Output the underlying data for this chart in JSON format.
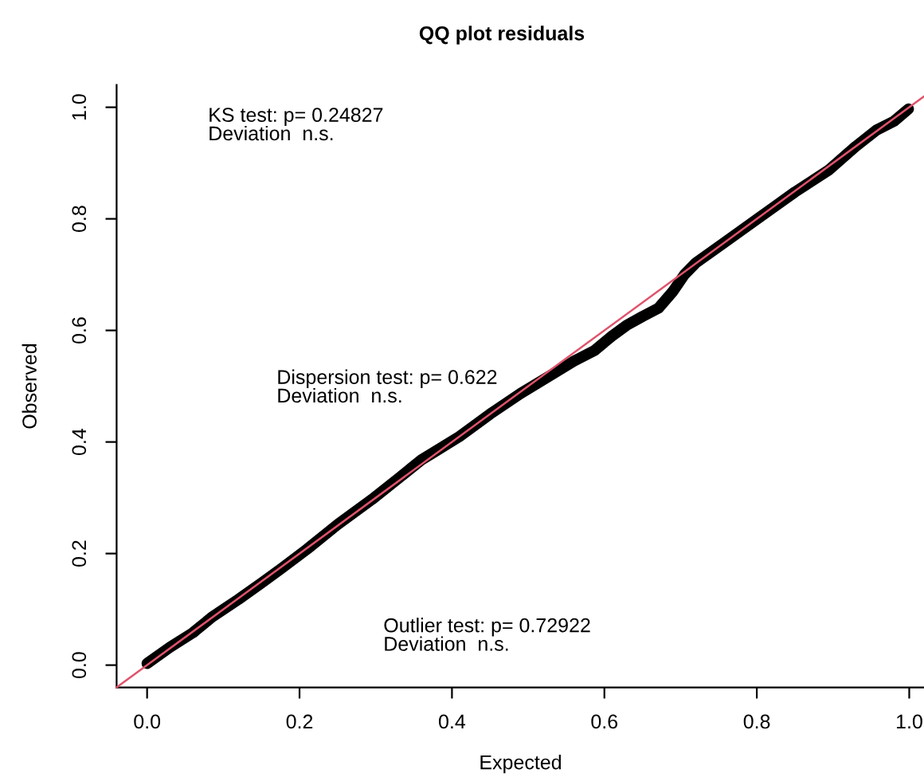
{
  "chart_data": {
    "type": "line",
    "title": "QQ plot residuals",
    "xlabel": "Expected",
    "ylabel": "Observed",
    "xlim": [
      -0.04,
      1.02
    ],
    "ylim": [
      -0.04,
      1.04
    ],
    "xticks": [
      {
        "value": 0,
        "label": "0.0"
      },
      0.2,
      0.4,
      0.6,
      0.8,
      {
        "value": 1,
        "label": "1.0"
      }
    ],
    "yticks": [
      {
        "value": 0,
        "label": "0.0"
      },
      0.2,
      0.4,
      0.6,
      0.8,
      {
        "value": 1,
        "label": "1.0"
      }
    ],
    "grid": false,
    "marker": "none",
    "line_style": "solid",
    "series": [
      {
        "color": "#000000",
        "x": [
          0,
          0.03,
          0.06,
          0.086,
          0.12,
          0.15,
          0.176,
          0.21,
          0.25,
          0.295,
          0.33,
          0.36,
          0.378,
          0.41,
          0.45,
          0.49,
          0.53,
          0.56,
          0.587,
          0.61,
          0.629,
          0.65,
          0.671,
          0.69,
          0.705,
          0.72,
          0.76,
          0.803,
          0.85,
          0.894,
          0.93,
          0.957,
          0.98,
          0.999
        ],
        "values": [
          0.003,
          0.032,
          0.058,
          0.087,
          0.118,
          0.147,
          0.173,
          0.208,
          0.252,
          0.297,
          0.335,
          0.368,
          0.383,
          0.41,
          0.45,
          0.487,
          0.52,
          0.545,
          0.564,
          0.59,
          0.609,
          0.625,
          0.64,
          0.67,
          0.7,
          0.721,
          0.76,
          0.802,
          0.848,
          0.887,
          0.93,
          0.959,
          0.975,
          0.997
        ]
      },
      {
        "color": "#df536b",
        "x": [
          -0.04,
          1.02
        ],
        "values": [
          -0.04,
          1.02
        ]
      }
    ],
    "annotations": [
      "KS test: p= 0.24827\nDeviation  n.s.",
      "Dispersion test: p= 0.622\nDeviation  n.s.",
      "Outlier test: p= 0.72922\nDeviation  n.s."
    ]
  }
}
